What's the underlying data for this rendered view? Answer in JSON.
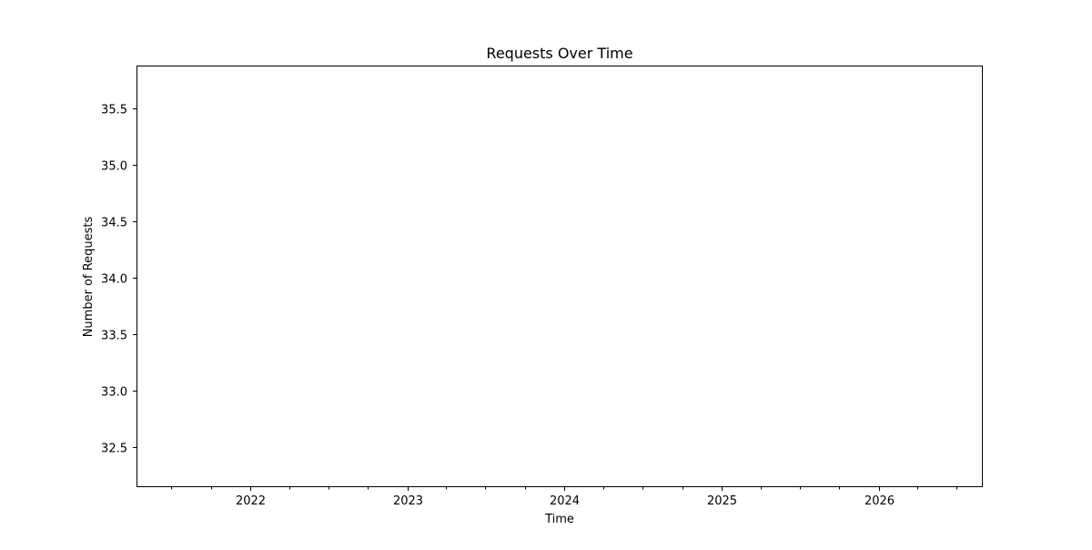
{
  "chart_data": {
    "type": "line",
    "title": "Requests Over Time",
    "xlabel": "Time",
    "ylabel": "Number of Requests",
    "xlim": [
      "2021-04-11",
      "2026-08-31"
    ],
    "ylim": [
      32.15,
      35.875
    ],
    "x_ticks": [
      "2022",
      "2023",
      "2024",
      "2025",
      "2026"
    ],
    "y_ticks": [
      "32.5",
      "33.0",
      "33.5",
      "34.0",
      "34.5",
      "35.0",
      "35.5"
    ],
    "series": [],
    "grid": false,
    "legend": "none"
  }
}
